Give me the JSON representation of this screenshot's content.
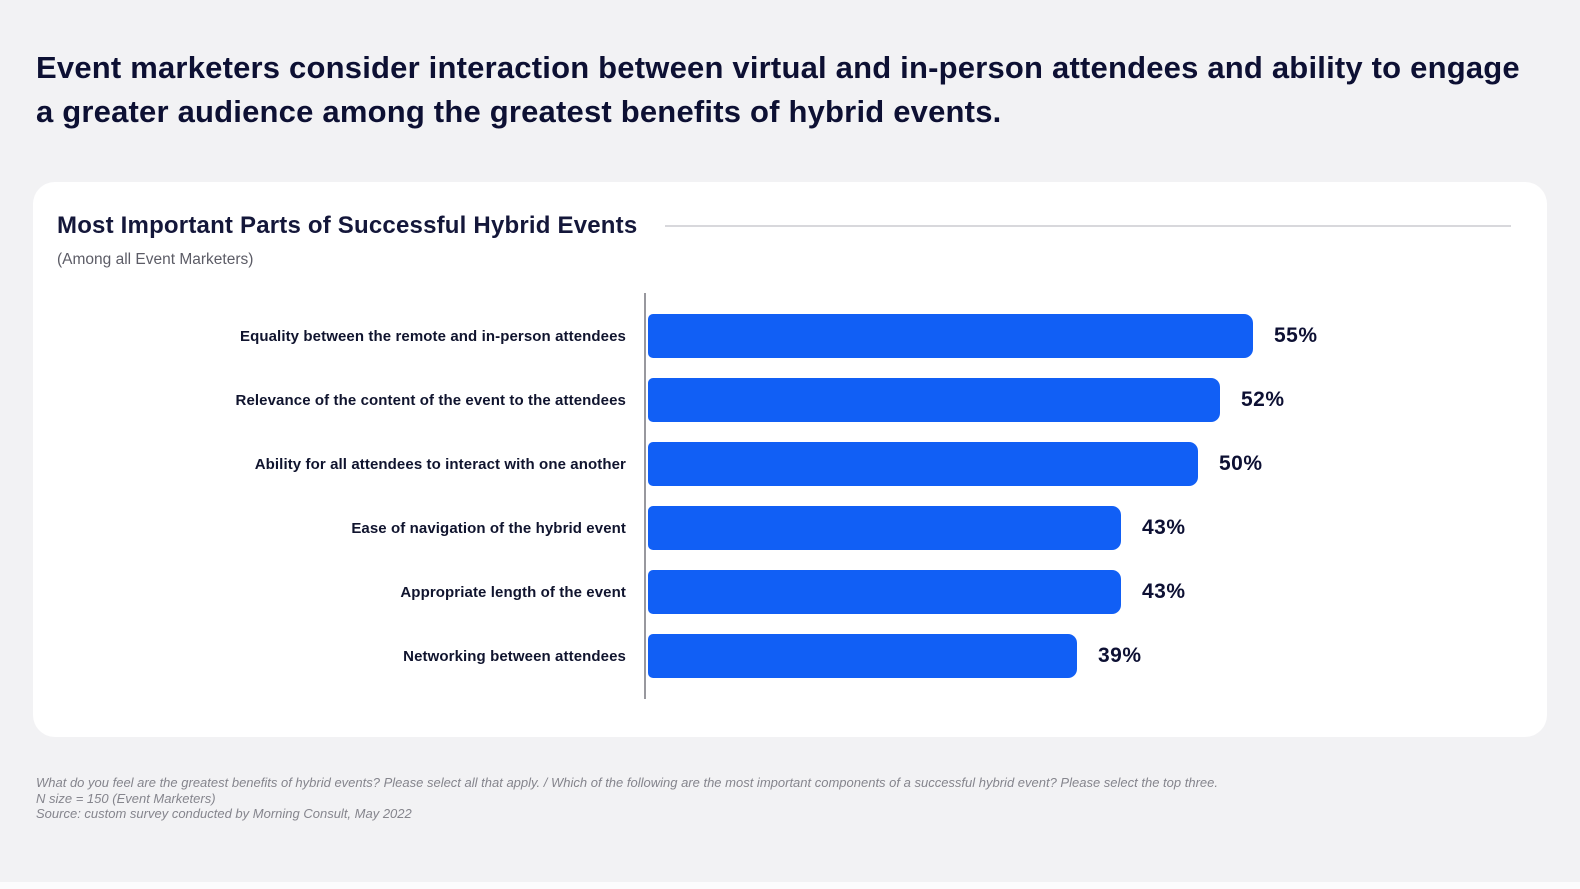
{
  "headline": "Event marketers consider interaction between virtual and in-person attendees and ability to engage a greater audience among the greatest benefits of hybrid events.",
  "card": {
    "title": "Most Important Parts of Successful Hybrid Events",
    "subtitle": "(Among all Event Marketers)"
  },
  "chart_data": {
    "type": "bar",
    "orientation": "horizontal",
    "title": "Most Important Parts of Successful Hybrid Events",
    "subtitle": "(Among all Event Marketers)",
    "categories": [
      "Equality between the remote and in-person attendees",
      "Relevance of the content of the event to the attendees",
      "Ability for all attendees to interact with one another",
      "Ease of navigation of the hybrid event",
      "Appropriate length of the event",
      "Networking between attendees"
    ],
    "values": [
      55,
      52,
      50,
      43,
      43,
      39
    ],
    "value_labels": [
      "55%",
      "52%",
      "50%",
      "43%",
      "43%",
      "39%"
    ],
    "value_suffix": "%",
    "xlim": [
      0,
      55
    ],
    "grid": false,
    "legend": "none",
    "bar_color": "#115ff5"
  },
  "footnotes": {
    "question": "What do you feel are the greatest benefits of hybrid events? Please select all that apply. / Which of the following are the most important components of a successful hybrid event? Please select the top three.",
    "n_size": "N size = 150 (Event Marketers)",
    "source": "Source: custom survey conducted by Morning Consult, May 2022"
  },
  "colors": {
    "page_bg": "#f2f2f4",
    "card_bg": "#ffffff",
    "headline_text": "#0d1033",
    "bar_blue": "#115ff5",
    "axis_gray": "#98989e",
    "title_rule_gray": "#d8d8dc",
    "subtitle_gray": "#5c5c66",
    "footnote_gray": "#85858d"
  }
}
